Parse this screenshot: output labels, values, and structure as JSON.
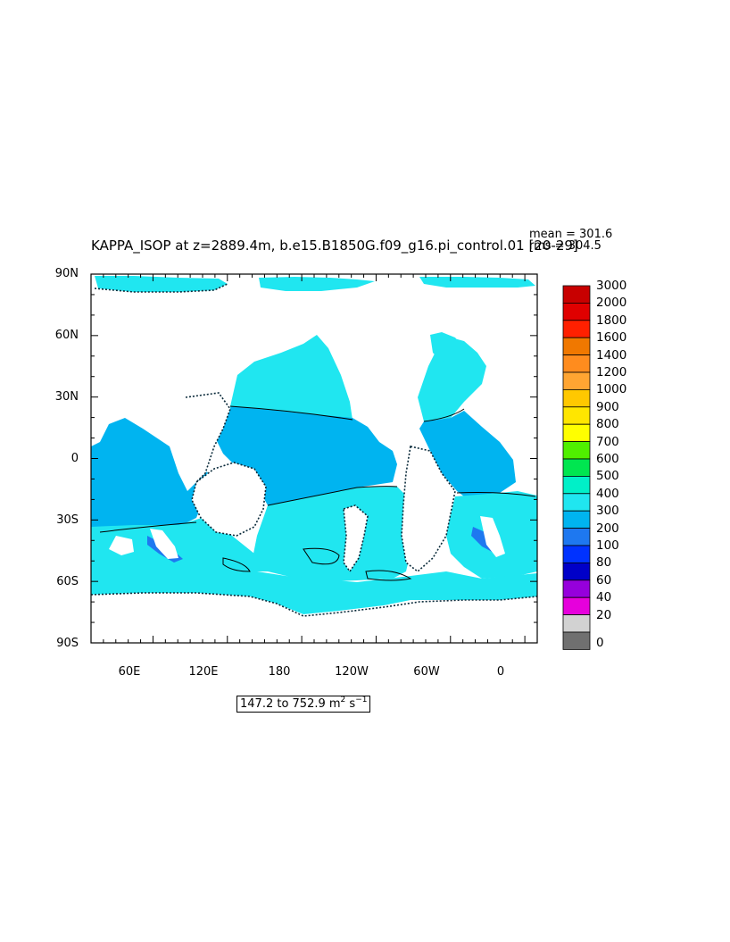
{
  "title": "KAPPA_ISOP at z=2889.4m, b.e15.B1850G.f09_g16.pi_control.01 [20-29]",
  "stats": {
    "mean": "mean = 301.6",
    "rms": "rms = 304.5"
  },
  "lat_labels": [
    "90N",
    "60N",
    "30N",
    "0",
    "30S",
    "60S",
    "90S"
  ],
  "lon_labels": [
    "60E",
    "120E",
    "180",
    "120W",
    "60W",
    "0"
  ],
  "range": {
    "prefix": "147.2 to 752.9 m",
    "exp1": "2",
    "mid": " s",
    "exp2": "−1"
  },
  "legend": {
    "levels": [
      "3000",
      "2000",
      "1800",
      "1600",
      "1400",
      "1200",
      "1000",
      "900",
      "800",
      "700",
      "600",
      "500",
      "400",
      "300",
      "200",
      "100",
      "80",
      "60",
      "40",
      "20",
      "0"
    ],
    "colors": [
      "#c80000",
      "#e00000",
      "#ff2000",
      "#f07800",
      "#ff8c1e",
      "#ffa532",
      "#ffc800",
      "#ffe600",
      "#ffff00",
      "#50f000",
      "#00e650",
      "#00f0c8",
      "#20e6f0",
      "#00b4f0",
      "#1e78f0",
      "#0032ff",
      "#0000c8",
      "#9600dc",
      "#e600dc",
      "#d2d2d2",
      "#707070"
    ]
  },
  "colors": {
    "ocean_main": "#20e6f0",
    "ocean_tropical": "#00b4f0",
    "ocean_low": "#1e78f0",
    "land": "#ffffff"
  }
}
